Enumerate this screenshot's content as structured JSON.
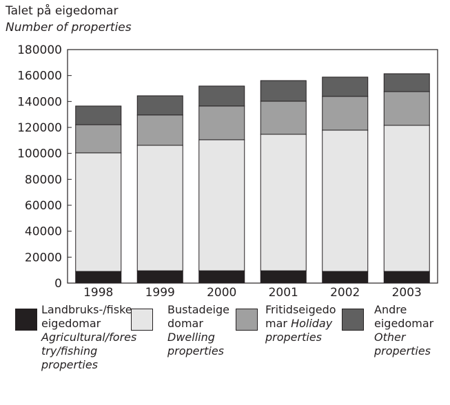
{
  "chart_data": {
    "type": "stacked_bar",
    "title": "Talet på eigedomar",
    "subtitle": "Number of properties",
    "categories": [
      "1998",
      "1999",
      "2000",
      "2001",
      "2002",
      "2003"
    ],
    "series": [
      {
        "name": "Landbruks-/fiskeeigedomar",
        "name_en": "Agricultural/forestry/fishing properties",
        "color": "#231f20",
        "values": [
          9000,
          9500,
          9500,
          9500,
          9000,
          9000
        ]
      },
      {
        "name": "Bustadeigedomar",
        "name_en": "Dwelling properties",
        "color": "#e6e6e6",
        "values": [
          91400,
          96700,
          101000,
          105200,
          108900,
          112600
        ]
      },
      {
        "name": "Fritidseigedomar",
        "name_en": "Holiday properties",
        "color": "#a0a0a0",
        "values": [
          21700,
          23400,
          26000,
          25500,
          26000,
          26000
        ]
      },
      {
        "name": "Andre eigedomar",
        "name_en": "Other properties",
        "color": "#606060",
        "values": [
          14400,
          14800,
          15400,
          15900,
          14900,
          13800
        ]
      }
    ],
    "ylim": [
      0,
      180000
    ],
    "yticks": [
      0,
      20000,
      40000,
      60000,
      80000,
      100000,
      120000,
      140000,
      160000,
      180000
    ]
  }
}
